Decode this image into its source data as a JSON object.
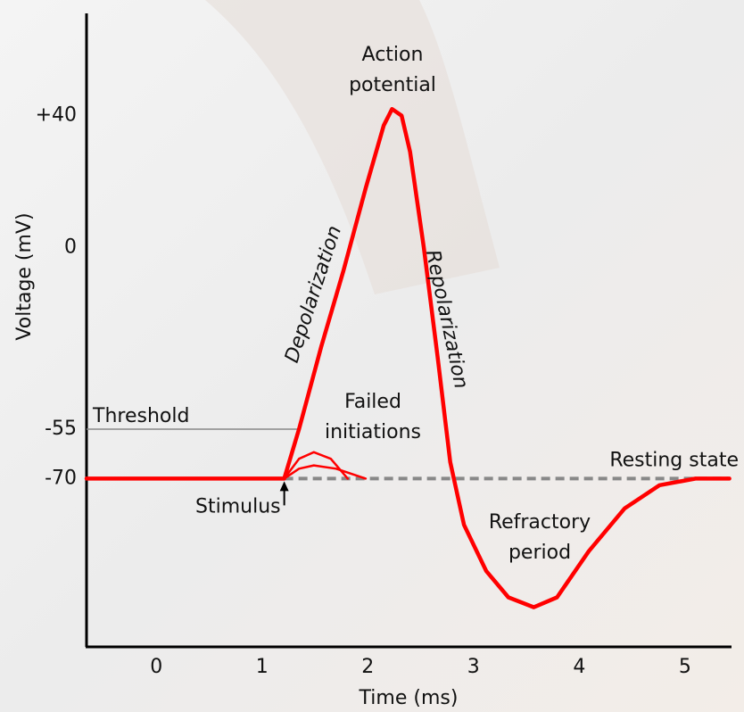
{
  "chart_data": {
    "type": "line",
    "x_label": "Time (ms)",
    "y_label": "Voltage (mV)",
    "xlim": [
      -0.66,
      5.44
    ],
    "ylim": [
      -121,
      71
    ],
    "xticks": [
      0,
      1,
      2,
      3,
      4,
      5
    ],
    "yticks": [
      {
        "value": 40,
        "label": "+40"
      },
      0,
      -55,
      -70
    ],
    "series": [
      {
        "color": "#ff0000",
        "x": [
          -0.66,
          1.21,
          1.35,
          1.56,
          1.77,
          1.98,
          2.15,
          2.23,
          2.32,
          2.4,
          2.53,
          2.66,
          2.78,
          2.91,
          3.12,
          3.33,
          3.57,
          3.79,
          4.09,
          4.43,
          4.76,
          5.1,
          5.42
        ],
        "values": [
          -70,
          -70,
          -55,
          -30,
          -7,
          18,
          37,
          42,
          40,
          29,
          0,
          -33,
          -65,
          -84,
          -98,
          -106,
          -109,
          -106,
          -92,
          -79,
          -72,
          -70,
          -70
        ]
      },
      {
        "color": "#ff0000",
        "x": [
          1.21,
          1.35,
          1.49,
          1.65,
          1.81
        ],
        "values": [
          -70,
          -64,
          -62,
          -64,
          -70
        ]
      },
      {
        "color": "#ff0000",
        "x": [
          1.21,
          1.35,
          1.49,
          1.7,
          1.98
        ],
        "values": [
          -70,
          -67,
          -66,
          -67,
          -70
        ]
      }
    ],
    "threshold": {
      "label": "Threshold",
      "value": -55,
      "color": "#888888"
    },
    "resting": {
      "label": "Resting state",
      "value": -70,
      "color": "#888888"
    },
    "stimulus": {
      "label": "Stimulus",
      "x": 1.21
    },
    "annotations": {
      "action_potential": [
        "Action",
        "potential"
      ],
      "depolarization": "Depolarization",
      "repolarization": "Repolarization",
      "failed_initiations": [
        "Failed",
        "initiations"
      ],
      "refractory_period": [
        "Refractory",
        "period"
      ]
    }
  }
}
